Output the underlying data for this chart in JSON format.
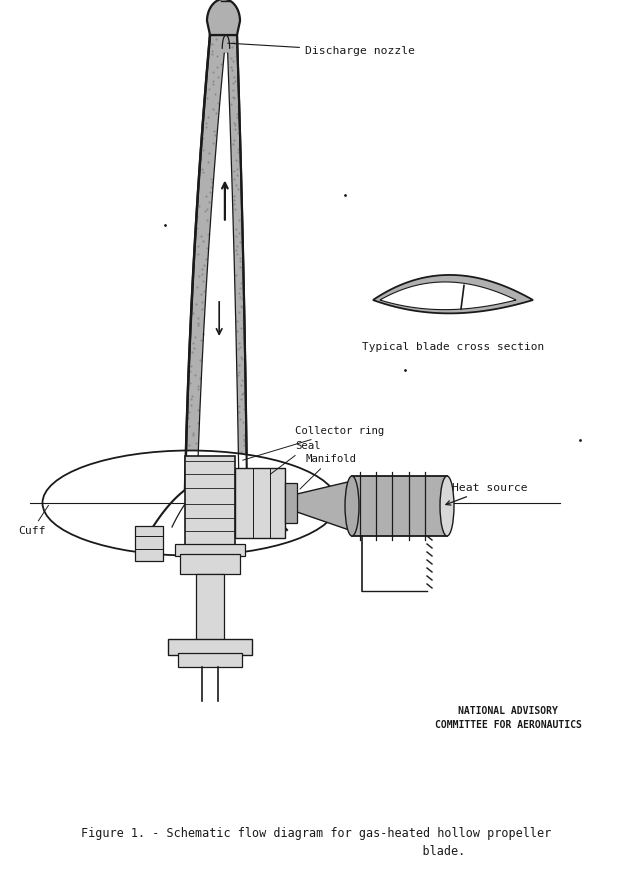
{
  "bg_color": "#ffffff",
  "lc": "#1a1a1a",
  "gray_stipple": "#b0b0b0",
  "gray_wall": "#c0c0c0",
  "gray_light": "#d8d8d8",
  "gray_medium": "#aaaaaa",
  "figsize": [
    6.33,
    8.91
  ],
  "dpi": 100,
  "title_line1": "Figure 1. - Schematic flow diagram for gas-heated hollow propeller",
  "title_line2": "                                    blade.",
  "naca_line1": "NATIONAL ADVISORY",
  "naca_line2": "COMMITTEE FOR AERONAUTICS",
  "label_discharge": "Discharge nozzle",
  "label_cross": "Typical blade cross section",
  "label_collector": "Collector ring",
  "label_seal": "Seal",
  "label_manifold": "Manifold",
  "label_heat": "Heat source",
  "label_cuff": "Cuff"
}
